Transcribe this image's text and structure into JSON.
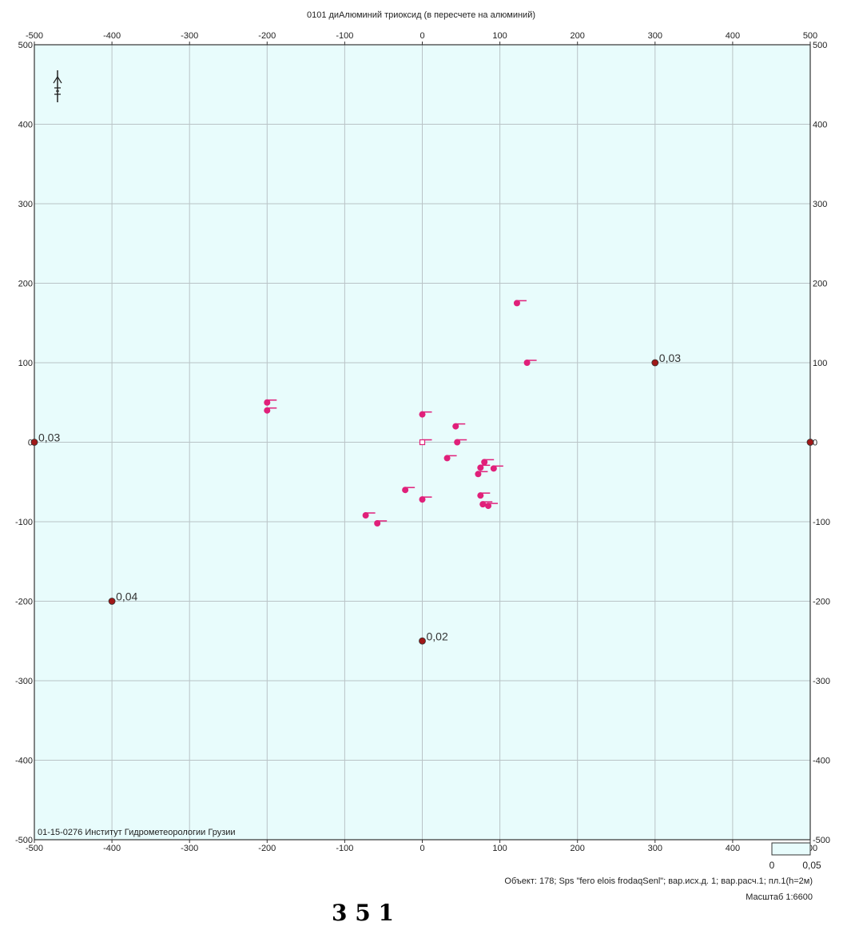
{
  "title": "0101 диАлюминий триоксид (в пересчете на алюминий)",
  "x_ticks": [
    -500,
    -400,
    -300,
    -200,
    -100,
    0,
    100,
    200,
    300,
    400,
    500
  ],
  "y_ticks": [
    500,
    400,
    300,
    200,
    100,
    0,
    -100,
    -200,
    -300,
    -400,
    -500
  ],
  "institute_label": "01-15-0276 Институт Гидрометеорологии Грузии",
  "value_labels": [
    {
      "x": 300,
      "y": 100,
      "text": "0,03"
    },
    {
      "x": -400,
      "y": -200,
      "text": "0,04"
    },
    {
      "x": -500,
      "y": 0,
      "text": "0,03"
    },
    {
      "x": 0,
      "y": -250,
      "text": "0,02"
    }
  ],
  "receptor_points": [
    {
      "x": 300,
      "y": 100
    },
    {
      "x": -400,
      "y": -200
    },
    {
      "x": 0,
      "y": -250
    },
    {
      "x": -500,
      "y": 0
    },
    {
      "x": 500,
      "y": 0
    }
  ],
  "sources": [
    {
      "x": 122,
      "y": 175
    },
    {
      "x": 135,
      "y": 100
    },
    {
      "x": -200,
      "y": 50
    },
    {
      "x": -200,
      "y": 40
    },
    {
      "x": 0,
      "y": 35
    },
    {
      "x": 43,
      "y": 20
    },
    {
      "x": 45,
      "y": 0
    },
    {
      "x": 32,
      "y": -20
    },
    {
      "x": 80,
      "y": -25
    },
    {
      "x": 75,
      "y": -32
    },
    {
      "x": 72,
      "y": -40
    },
    {
      "x": 92,
      "y": -33
    },
    {
      "x": -22,
      "y": -60
    },
    {
      "x": 0,
      "y": -72
    },
    {
      "x": 75,
      "y": -67
    },
    {
      "x": 78,
      "y": -78
    },
    {
      "x": 85,
      "y": -80
    },
    {
      "x": -73,
      "y": -92
    },
    {
      "x": -58,
      "y": -102
    }
  ],
  "hollow_sources": [
    {
      "x": 0,
      "y": 0
    }
  ],
  "legend": {
    "min": "0",
    "max": "0,05"
  },
  "footer": {
    "object": "Объект: 178; Sps \"fero elois frodaqSenl\"; вар.исх.д. 1; вар.расч.1; пл.1(h=2м)",
    "scale": "Масштаб 1:6600"
  },
  "bottom_caption": "3     5   1",
  "colors": {
    "background": "#e8fcfc",
    "grid": "#b9c3c6",
    "source": "#e0207a",
    "receptor": "#a01818"
  }
}
